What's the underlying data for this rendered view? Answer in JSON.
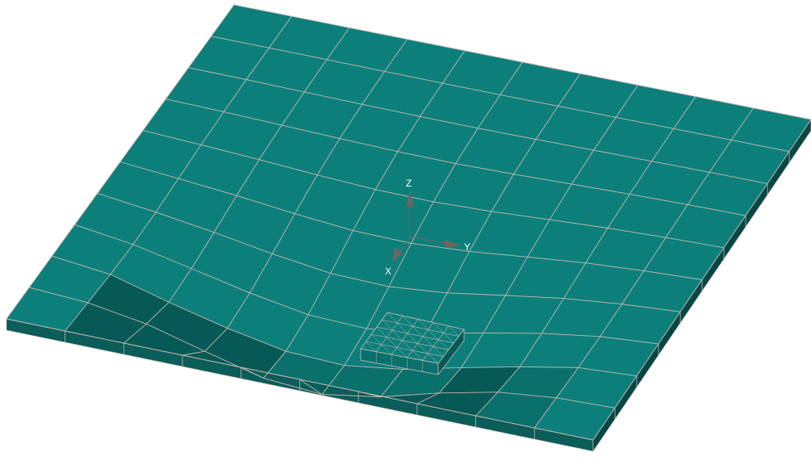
{
  "viewport": {
    "background_color": "#ffffff",
    "mesh_colors": {
      "face_light": "#0c7f7b",
      "face_mid": "#0a706c",
      "face_dark": "#075955",
      "side_front": "#0a5d59",
      "side_right": "#064744",
      "grid_line": "#c8b8b0",
      "triad": "#6e6460"
    }
  },
  "triad": {
    "z_label": "Z",
    "y_label": "Y",
    "x_label": "X"
  }
}
